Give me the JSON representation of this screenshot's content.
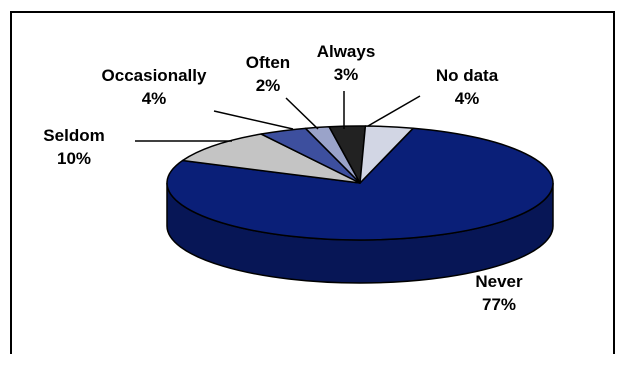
{
  "chart_data": {
    "type": "pie",
    "style": "3d",
    "slices": [
      {
        "label": "Never",
        "percent_text": "77%",
        "value": 77,
        "color": "#0a1f78"
      },
      {
        "label": "Seldom",
        "percent_text": "10%",
        "value": 10,
        "color": "#c4c4c4"
      },
      {
        "label": "Occasionally",
        "percent_text": "4%",
        "value": 4,
        "color": "#3d4f9e"
      },
      {
        "label": "Often",
        "percent_text": "2%",
        "value": 2,
        "color": "#9aa3c9"
      },
      {
        "label": "Always",
        "percent_text": "3%",
        "value": 3,
        "color": "#222222"
      },
      {
        "label": "No data",
        "percent_text": "4%",
        "value": 4,
        "color": "#d2d6e4"
      }
    ]
  }
}
